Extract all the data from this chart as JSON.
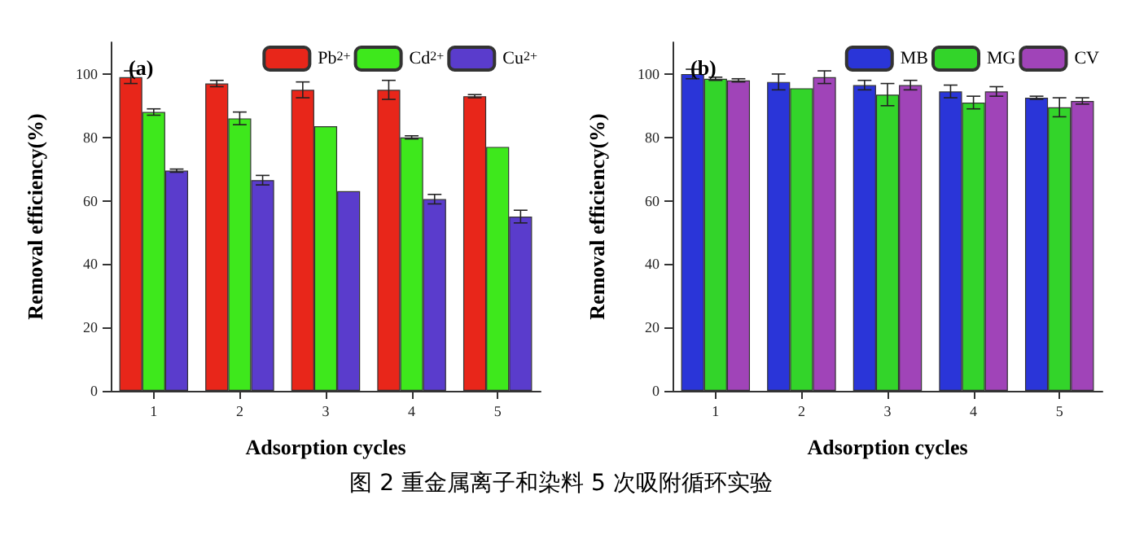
{
  "chart_data": [
    {
      "type": "bar",
      "title": "(a)",
      "xlabel": "Adsorption cycles",
      "ylabel": "Removal efficiency(%)",
      "categories": [
        "1",
        "2",
        "3",
        "4",
        "5"
      ],
      "series": [
        {
          "name": "Pb$^{2+}$",
          "color": "#e8261a",
          "values": [
            99,
            97,
            95,
            95,
            93
          ],
          "errors": [
            2,
            1,
            2.5,
            3,
            0.5
          ]
        },
        {
          "name": "Cd$^{2+}$",
          "color": "#3ee81c",
          "values": [
            88,
            86,
            83.5,
            80,
            77
          ],
          "errors": [
            1,
            2,
            null,
            0.5,
            null
          ]
        },
        {
          "name": "Cu$^{2+}$",
          "color": "#5a3ccc",
          "values": [
            69.5,
            66.5,
            63,
            60.5,
            55
          ],
          "errors": [
            0.5,
            1.5,
            null,
            1.5,
            2
          ]
        }
      ],
      "ylim": [
        0,
        110
      ],
      "yticks": [
        0,
        20,
        40,
        60,
        80,
        100
      ],
      "grid": false,
      "legend": "top right",
      "annotations": [
        "图 2  重金属离子和染料 5 次吸附循环实验"
      ]
    },
    {
      "type": "bar",
      "title": "(b)",
      "xlabel": "Adsorption cycles",
      "ylabel": "Removal efficiency(%)",
      "categories": [
        "1",
        "2",
        "3",
        "4",
        "5"
      ],
      "series": [
        {
          "name": "MB",
          "color": "#2a35d8",
          "values": [
            100,
            97.5,
            96.5,
            94.5,
            92.5
          ],
          "errors": [
            1.5,
            2.5,
            1.5,
            2,
            0.5
          ]
        },
        {
          "name": "MG",
          "color": "#33d42a",
          "values": [
            98.5,
            95.5,
            93.5,
            91,
            89.5
          ],
          "errors": [
            0.5,
            null,
            3.5,
            2,
            3
          ]
        },
        {
          "name": "CV",
          "color": "#a044b8",
          "values": [
            98,
            99,
            96.5,
            94.5,
            91.5
          ],
          "errors": [
            0.5,
            2,
            1.5,
            1.5,
            1
          ]
        }
      ],
      "ylim": [
        0,
        110
      ],
      "yticks": [
        0,
        20,
        40,
        60,
        80,
        100
      ],
      "grid": false,
      "legend": "top right"
    }
  ]
}
